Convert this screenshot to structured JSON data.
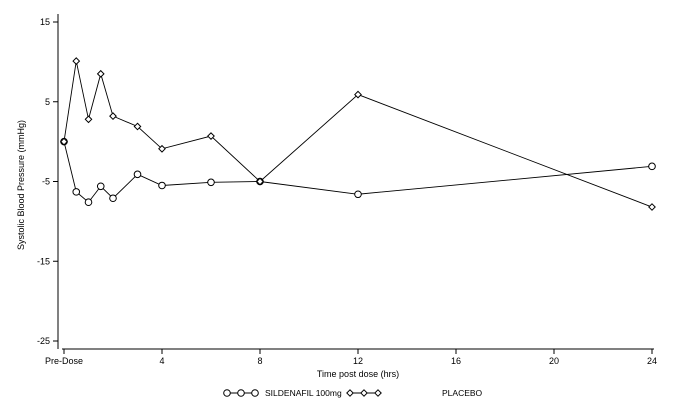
{
  "chart_data": {
    "type": "line",
    "xlabel": "Time post dose (hrs)",
    "ylabel": "Systolic Blood Pressure (mmHg)",
    "xlim": [
      0,
      24
    ],
    "ylim": [
      -26,
      16
    ],
    "xticks": [
      0,
      4,
      8,
      12,
      16,
      20,
      24
    ],
    "xtick_labels": [
      "Pre-Dose",
      "4",
      "8",
      "12",
      "16",
      "20",
      "24"
    ],
    "yticks": [
      15,
      5,
      -5,
      -15,
      -25
    ],
    "ytick_labels": [
      "15",
      "5",
      "-5",
      "-15",
      "-25"
    ],
    "grid": false,
    "legend_position": "bottom",
    "series": [
      {
        "name": "SILDENAFIL 100mg",
        "marker": "circle",
        "color": "#000000",
        "x": [
          0,
          0.5,
          1,
          1.5,
          2,
          3,
          4,
          6,
          8,
          12,
          24
        ],
        "y": [
          0,
          -6.3,
          -7.6,
          -5.6,
          -7.1,
          -4.1,
          -5.5,
          -5.1,
          -5.0,
          -6.6,
          -3.1
        ]
      },
      {
        "name": "PLACEBO",
        "marker": "diamond",
        "color": "#000000",
        "x": [
          0,
          0.5,
          1,
          1.5,
          2,
          3,
          4,
          6,
          8,
          12,
          24
        ],
        "y": [
          0,
          10.1,
          2.8,
          8.5,
          3.2,
          1.9,
          -0.9,
          0.7,
          -5.0,
          5.9,
          -8.2
        ]
      }
    ]
  }
}
